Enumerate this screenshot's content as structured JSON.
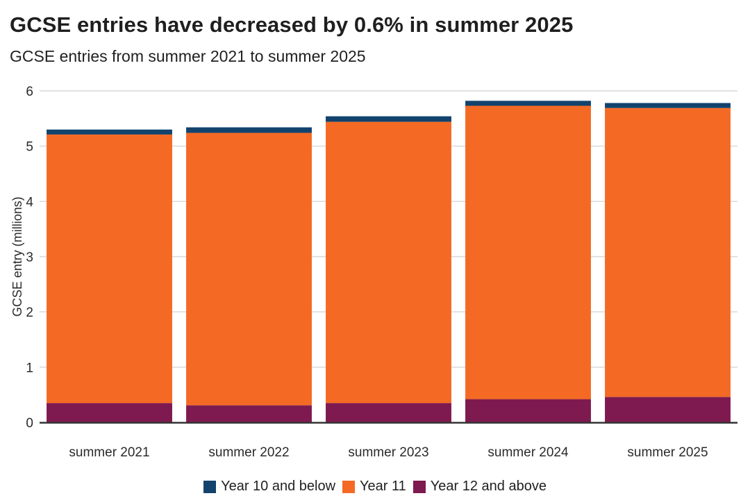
{
  "header": {
    "title": "GCSE entries have decreased by 0.6% in summer 2025",
    "subtitle": "GCSE entries from summer 2021 to summer 2025"
  },
  "chart_data": {
    "type": "bar",
    "stacked": true,
    "title": "GCSE entries have decreased by 0.6% in summer 2025",
    "subtitle": "GCSE entries from summer 2021 to summer 2025",
    "xlabel": "",
    "ylabel": "GCSE entry (millions)",
    "ylim": [
      0,
      6
    ],
    "yticks": [
      0,
      1,
      2,
      3,
      4,
      5,
      6
    ],
    "grid": true,
    "legend_position": "bottom",
    "categories": [
      "summer 2021",
      "summer 2022",
      "summer 2023",
      "summer 2024",
      "summer 2025"
    ],
    "series": [
      {
        "name": "Year 12 and above",
        "color": "#7e1a4f",
        "values": [
          0.35,
          0.31,
          0.35,
          0.42,
          0.46
        ]
      },
      {
        "name": "Year 11",
        "color": "#f46a25",
        "values": [
          4.86,
          4.93,
          5.09,
          5.31,
          5.23
        ]
      },
      {
        "name": "Year 10 and below",
        "color": "#12436d",
        "values": [
          0.09,
          0.1,
          0.1,
          0.09,
          0.09
        ]
      }
    ]
  }
}
